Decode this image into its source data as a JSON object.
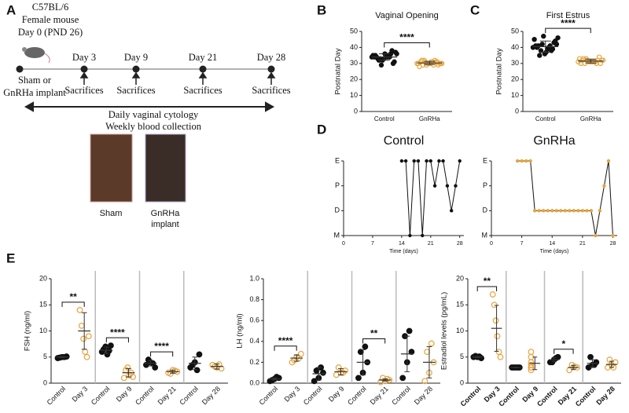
{
  "panels": [
    "A",
    "B",
    "C",
    "D",
    "E"
  ],
  "panel_a": {
    "strain": "C57BL/6",
    "sex": "Female mouse",
    "day0": "Day 0 (PND 26)",
    "timepoints": [
      "Day 3",
      "Day 9",
      "Day 21",
      "Day 28"
    ],
    "implant": [
      "Sham or",
      "GnRHa implant"
    ],
    "sacrifices": [
      "Sacrifices",
      "Sacrifices",
      "Sacrifices",
      "Sacrifices"
    ],
    "procedures": [
      "Daily vaginal cytology",
      "Weekly blood collection"
    ],
    "photo_labels": [
      "Sham",
      "GnRHa",
      "implant"
    ]
  },
  "chart_data": [
    {
      "type": "dot",
      "title": "Vaginal Opening",
      "ylabel": "Postnatal Day",
      "categories": [
        "Control",
        "GnRHa"
      ],
      "colors": [
        "#111111",
        "#e8a33a"
      ],
      "points": [
        [
          34,
          33,
          35,
          36,
          32,
          34,
          37,
          33,
          35,
          31,
          34,
          36,
          30,
          35,
          33,
          38,
          34,
          32,
          36,
          35,
          29,
          34
        ],
        [
          30,
          31,
          29,
          30,
          32,
          31,
          30,
          29,
          31,
          30,
          32,
          30,
          29,
          31,
          30,
          31,
          28,
          30,
          31,
          30,
          29,
          32
        ]
      ],
      "means": [
        34,
        30.3
      ],
      "sds": [
        2,
        1
      ],
      "ylim": [
        0,
        50
      ],
      "yticks": [
        0,
        10,
        20,
        30,
        40,
        50
      ],
      "significance": "****"
    },
    {
      "type": "dot",
      "title": "First Estrus",
      "ylabel": "Postnatal Day",
      "categories": [
        "Control",
        "GnRHa"
      ],
      "colors": [
        "#111111",
        "#e8a33a"
      ],
      "points": [
        [
          40,
          42,
          38,
          45,
          47,
          39,
          41,
          36,
          43,
          40,
          37,
          44,
          41,
          39,
          42,
          35,
          40,
          46,
          38,
          41
        ],
        [
          31,
          32,
          30,
          33,
          31,
          32,
          30,
          31,
          34,
          32,
          31,
          30,
          33,
          31,
          32,
          30,
          31,
          32,
          33,
          31
        ]
      ],
      "means": [
        40.5,
        31.5
      ],
      "sds": [
        3.5,
        1.2
      ],
      "ylim": [
        0,
        50
      ],
      "yticks": [
        0,
        10,
        20,
        30,
        40,
        50
      ],
      "significance": "****"
    },
    {
      "type": "line",
      "title": "Control",
      "xlabel": "Time (days)",
      "color": "#111111",
      "x": [
        14,
        15,
        16,
        17,
        18,
        19,
        20,
        21,
        22,
        23,
        24,
        25,
        26,
        27,
        28
      ],
      "values": [
        3,
        3,
        0,
        3,
        3,
        0,
        3,
        3,
        2,
        3,
        3,
        2,
        1,
        2,
        3
      ],
      "xlim": [
        0,
        29
      ],
      "xticks": [
        0,
        7,
        14,
        21,
        28
      ],
      "ylim": [
        0,
        3
      ],
      "yticks": [
        {
          "value": 0,
          "label": "M"
        },
        {
          "value": 1,
          "label": "D"
        },
        {
          "value": 2,
          "label": "P"
        },
        {
          "value": 3,
          "label": "E"
        }
      ]
    },
    {
      "type": "line",
      "title": "GnRHa",
      "xlabel": "Time (days)",
      "color": "#e8a33a",
      "x": [
        6,
        7,
        8,
        9,
        10,
        11,
        12,
        13,
        14,
        15,
        16,
        17,
        18,
        19,
        20,
        21,
        22,
        23,
        24,
        25,
        26,
        27,
        28
      ],
      "values": [
        3,
        3,
        3,
        3,
        1,
        1,
        1,
        1,
        1,
        1,
        1,
        1,
        1,
        1,
        1,
        1,
        1,
        1,
        0,
        1,
        2,
        3,
        0
      ],
      "xlim": [
        0,
        29
      ],
      "xticks": [
        0,
        7,
        14,
        21,
        28
      ],
      "ylim": [
        0,
        3
      ],
      "yticks": [
        {
          "value": 0,
          "label": "M"
        },
        {
          "value": 1,
          "label": "D"
        },
        {
          "value": 2,
          "label": "P"
        },
        {
          "value": 3,
          "label": "E"
        }
      ]
    },
    {
      "type": "dot",
      "ylabel": "FSH (ng/ml)",
      "categories": [
        "Control",
        "Day 3",
        "Control",
        "Day 9",
        "Control",
        "Day 21",
        "Control",
        "Day 28"
      ],
      "colors": [
        "#111111",
        "#e8a33a",
        "#111111",
        "#e8a33a",
        "#111111",
        "#e8a33a",
        "#111111",
        "#e8a33a"
      ],
      "points": [
        [
          4.8,
          5,
          5.1,
          4.9,
          5
        ],
        [
          14,
          11,
          8.5,
          6,
          5,
          9
        ],
        [
          6,
          6.5,
          7,
          5.5,
          6.2,
          7.2
        ],
        [
          1,
          2.5,
          3,
          1.5,
          2,
          1.2
        ],
        [
          3.5,
          4,
          3,
          4.5,
          3.8
        ],
        [
          2,
          2.5,
          2.2,
          1.8,
          2.4
        ],
        [
          3,
          4,
          5.5,
          3.5,
          2.5
        ],
        [
          3.5,
          3,
          2.8,
          3.2,
          3.6
        ]
      ],
      "means": [
        5,
        10,
        6.3,
        2,
        3.8,
        2.2,
        3.8,
        3.2
      ],
      "sds": [
        0.1,
        3.5,
        0.6,
        0.8,
        0.5,
        0.3,
        1.2,
        0.5
      ],
      "ylim": [
        0,
        20
      ],
      "yticks": [
        0,
        5,
        10,
        15,
        20
      ],
      "significance": [
        "**",
        "****",
        "****",
        null
      ]
    },
    {
      "type": "dot",
      "ylabel": "LH (ng/ml)",
      "categories": [
        "Control",
        "Day 3",
        "Control",
        "Day 9",
        "Control",
        "Day 21",
        "Control",
        "Day 28"
      ],
      "colors": [
        "#111111",
        "#e8a33a",
        "#111111",
        "#e8a33a",
        "#111111",
        "#e8a33a",
        "#111111",
        "#e8a33a"
      ],
      "points": [
        [
          0.02,
          0.04,
          0.05,
          0.03,
          0.06
        ],
        [
          0.2,
          0.25,
          0.28,
          0.22,
          0.24
        ],
        [
          0.02,
          0.05,
          0.1,
          0.12,
          0.15
        ],
        [
          0.08,
          0.1,
          0.12,
          0.15,
          0.1
        ],
        [
          0.05,
          0.1,
          0.2,
          0.3,
          0.35
        ],
        [
          0.01,
          0.02,
          0.03,
          0.05,
          0.04
        ],
        [
          0.05,
          0.2,
          0.3,
          0.45,
          0.5
        ],
        [
          0.02,
          0.1,
          0.2,
          0.3,
          0.38
        ]
      ],
      "means": [
        0.04,
        0.24,
        0.09,
        0.11,
        0.2,
        0.03,
        0.28,
        0.2
      ],
      "sds": [
        0.01,
        0.03,
        0.06,
        0.03,
        0.12,
        0.01,
        0.17,
        0.15
      ],
      "ylim": [
        0,
        1
      ],
      "yticks": [
        {
          "value": 0,
          "label": "0.0"
        },
        {
          "value": 0.2,
          "label": "0.2"
        },
        {
          "value": 0.4,
          "label": "0.4"
        },
        {
          "value": 0.6,
          "label": "0.6"
        },
        {
          "value": 0.8,
          "label": "0.8"
        },
        {
          "value": 1,
          "label": "1.0"
        }
      ],
      "significance": [
        "****",
        null,
        "**",
        null
      ]
    },
    {
      "type": "dot",
      "ylabel": "Estradiol levels (pg/mL)",
      "bold_labels": true,
      "categories": [
        "Control",
        "Day 3",
        "Control",
        "Day 9",
        "Control",
        "Day 21",
        "Control",
        "Day 28"
      ],
      "colors": [
        "#111111",
        "#e8a33a",
        "#111111",
        "#e8a33a",
        "#111111",
        "#e8a33a",
        "#111111",
        "#e8a33a"
      ],
      "points": [
        [
          5,
          5,
          4.8,
          5.2,
          5.1
        ],
        [
          17,
          15,
          12,
          9,
          6,
          5
        ],
        [
          3,
          3,
          3,
          3,
          3
        ],
        [
          2.5,
          3,
          3.5,
          4,
          5,
          6,
          3
        ],
        [
          4,
          4.5,
          5,
          4,
          4.8
        ],
        [
          2.5,
          3,
          3.2,
          3.5
        ],
        [
          3,
          3.5,
          4,
          5,
          3.5
        ],
        [
          3,
          3.5,
          4,
          4.5,
          3
        ]
      ],
      "means": [
        5,
        10.5,
        3,
        3.8,
        4.5,
        3,
        3.8,
        3.6
      ],
      "sds": [
        0.1,
        4.4,
        0.05,
        1.2,
        0.4,
        0.4,
        0.7,
        0.6
      ],
      "ylim": [
        0,
        20
      ],
      "yticks": [
        0,
        5,
        10,
        15,
        20
      ],
      "significance": [
        "**",
        null,
        "*",
        null
      ]
    }
  ]
}
